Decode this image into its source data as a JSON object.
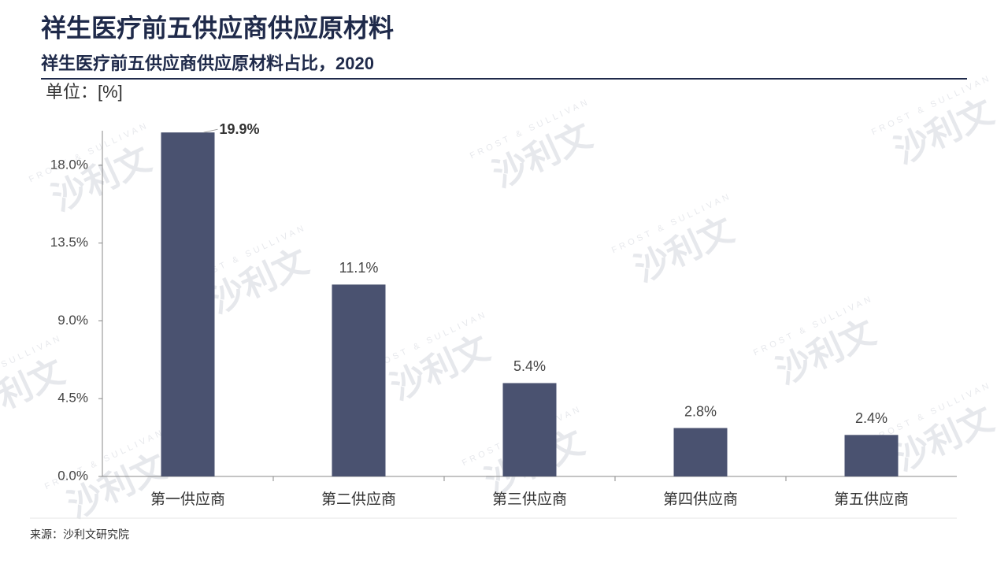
{
  "chart_data": {
    "type": "bar",
    "title": "祥生医疗前五供应商供应原材料",
    "subtitle": "祥生医疗前五供应商供应原材料占比，2020",
    "unit_label": "单位：[%]",
    "source": "来源：沙利文研究院",
    "watermark": "沙利文",
    "watermark_sub": "FROST & SULLIVAN",
    "categories": [
      "第一供应商",
      "第二供应商",
      "第三供应商",
      "第四供应商",
      "第五供应商"
    ],
    "values": [
      19.9,
      11.1,
      5.4,
      2.8,
      2.4
    ],
    "value_labels": [
      "19.9%",
      "11.1%",
      "5.4%",
      "2.8%",
      "2.4%"
    ],
    "color": "#4a5270",
    "ylim": [
      0,
      20
    ],
    "yticks": [
      {
        "value": 0,
        "label": "0.0%"
      },
      {
        "value": 4.5,
        "label": "4.5%"
      },
      {
        "value": 9,
        "label": "9.0%"
      },
      {
        "value": 13.5,
        "label": "13.5%"
      },
      {
        "value": 18,
        "label": "18.0%"
      }
    ],
    "grid": false
  }
}
